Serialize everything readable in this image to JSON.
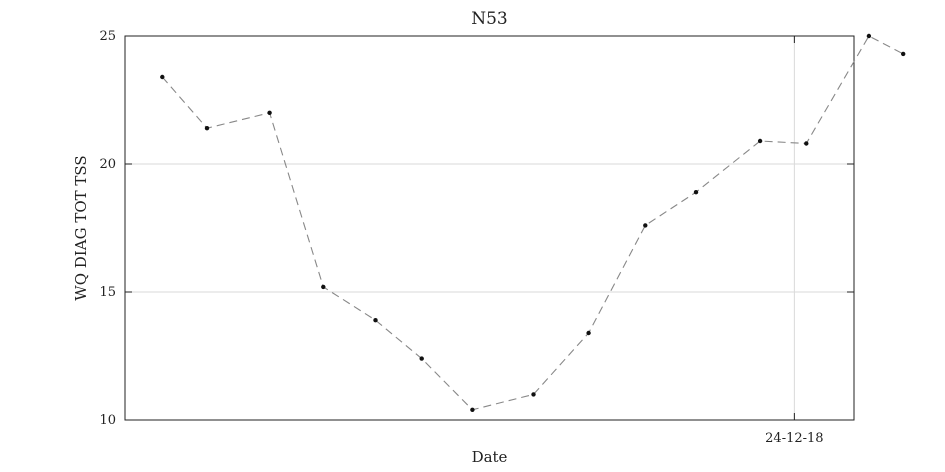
{
  "chart_data": {
    "type": "line",
    "title": "N53",
    "xlabel": "Date",
    "ylabel": "WQ DIAG TOT TSS",
    "ylim": [
      10,
      25
    ],
    "yticks": [
      10,
      15,
      20,
      25
    ],
    "yticklabels": [
      "10",
      "15",
      "20",
      "25"
    ],
    "xlim": [
      "2023-09-26",
      "2025-01-27"
    ],
    "xticks": [
      "2024-12-18"
    ],
    "xticklabels": [
      "24-12-18"
    ],
    "grid": true,
    "series": [
      {
        "x": [
          "2023-10-21",
          "2023-11-20",
          "2024-01-01",
          "2024-02-06",
          "2024-03-12",
          "2024-04-12",
          "2024-05-16",
          "2024-06-26",
          "2024-08-02",
          "2024-09-09",
          "2024-10-13",
          "2024-11-25",
          "2024-12-26",
          "2025-02-06",
          "2025-03-01"
        ],
        "values": [
          23.4,
          21.4,
          22.0,
          15.2,
          13.9,
          12.4,
          10.4,
          11.0,
          13.4,
          17.6,
          18.9,
          20.9,
          20.8,
          25.0,
          24.3
        ]
      }
    ],
    "colors": {
      "line": "#888888",
      "marker": "#111111",
      "grid": "#d9d9d9",
      "axes": "#222222"
    }
  }
}
